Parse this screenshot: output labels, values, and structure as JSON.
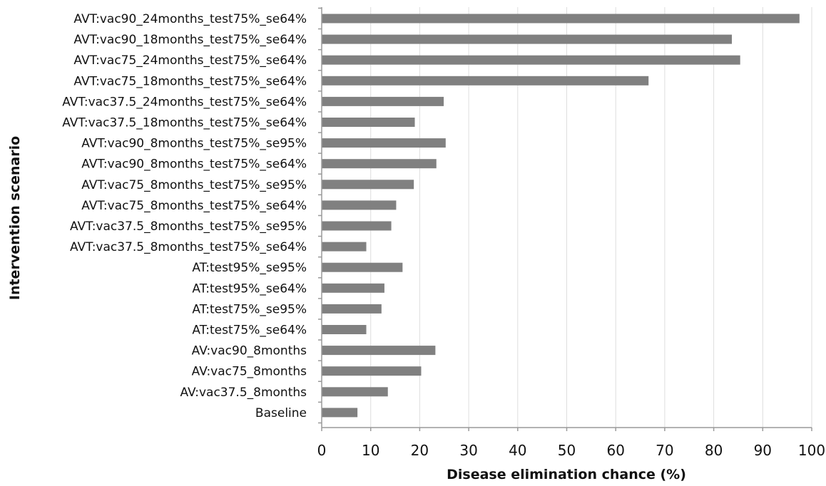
{
  "chart_data": {
    "type": "bar",
    "orientation": "horizontal",
    "title": "",
    "xlabel": "Disease elimination chance (%)",
    "ylabel": "Intervention scenario",
    "xlim": [
      0,
      100
    ],
    "xticks": [
      "0",
      "10",
      "20",
      "30",
      "40",
      "50",
      "60",
      "70",
      "80",
      "90",
      "100"
    ],
    "grid": "vertical",
    "bar_color": "#808080",
    "categories": [
      "AVT:vac90_24months_test75%_se64%",
      "AVT:vac90_18months_test75%_se64%",
      "AVT:vac75_24months_test75%_se64%",
      "AVT:vac75_18months_test75%_se64%",
      "AVT:vac37.5_24months_test75%_se64%",
      "AVT:vac37.5_18months_test75%_se64%",
      "AVT:vac90_8months_test75%_se95%",
      "AVT:vac90_8months_test75%_se64%",
      "AVT:vac75_8months_test75%_se95%",
      "AVT:vac75_8months_test75%_se64%",
      "AVT:vac37.5_8months_test75%_se95%",
      "AVT:vac37.5_8months_test75%_se64%",
      "AT:test95%_se95%",
      "AT:test95%_se64%",
      "AT:test75%_se95%",
      "AT:test75%_se64%",
      "AV:vac90_8months",
      "AV:vac75_8months",
      "AV:vac37.5_8months",
      "Baseline"
    ],
    "values": [
      97.5,
      83.7,
      85.4,
      66.7,
      24.9,
      19.0,
      25.3,
      23.4,
      18.8,
      15.2,
      14.2,
      9.1,
      16.5,
      12.8,
      12.2,
      9.1,
      23.2,
      20.3,
      13.5,
      7.3
    ]
  }
}
